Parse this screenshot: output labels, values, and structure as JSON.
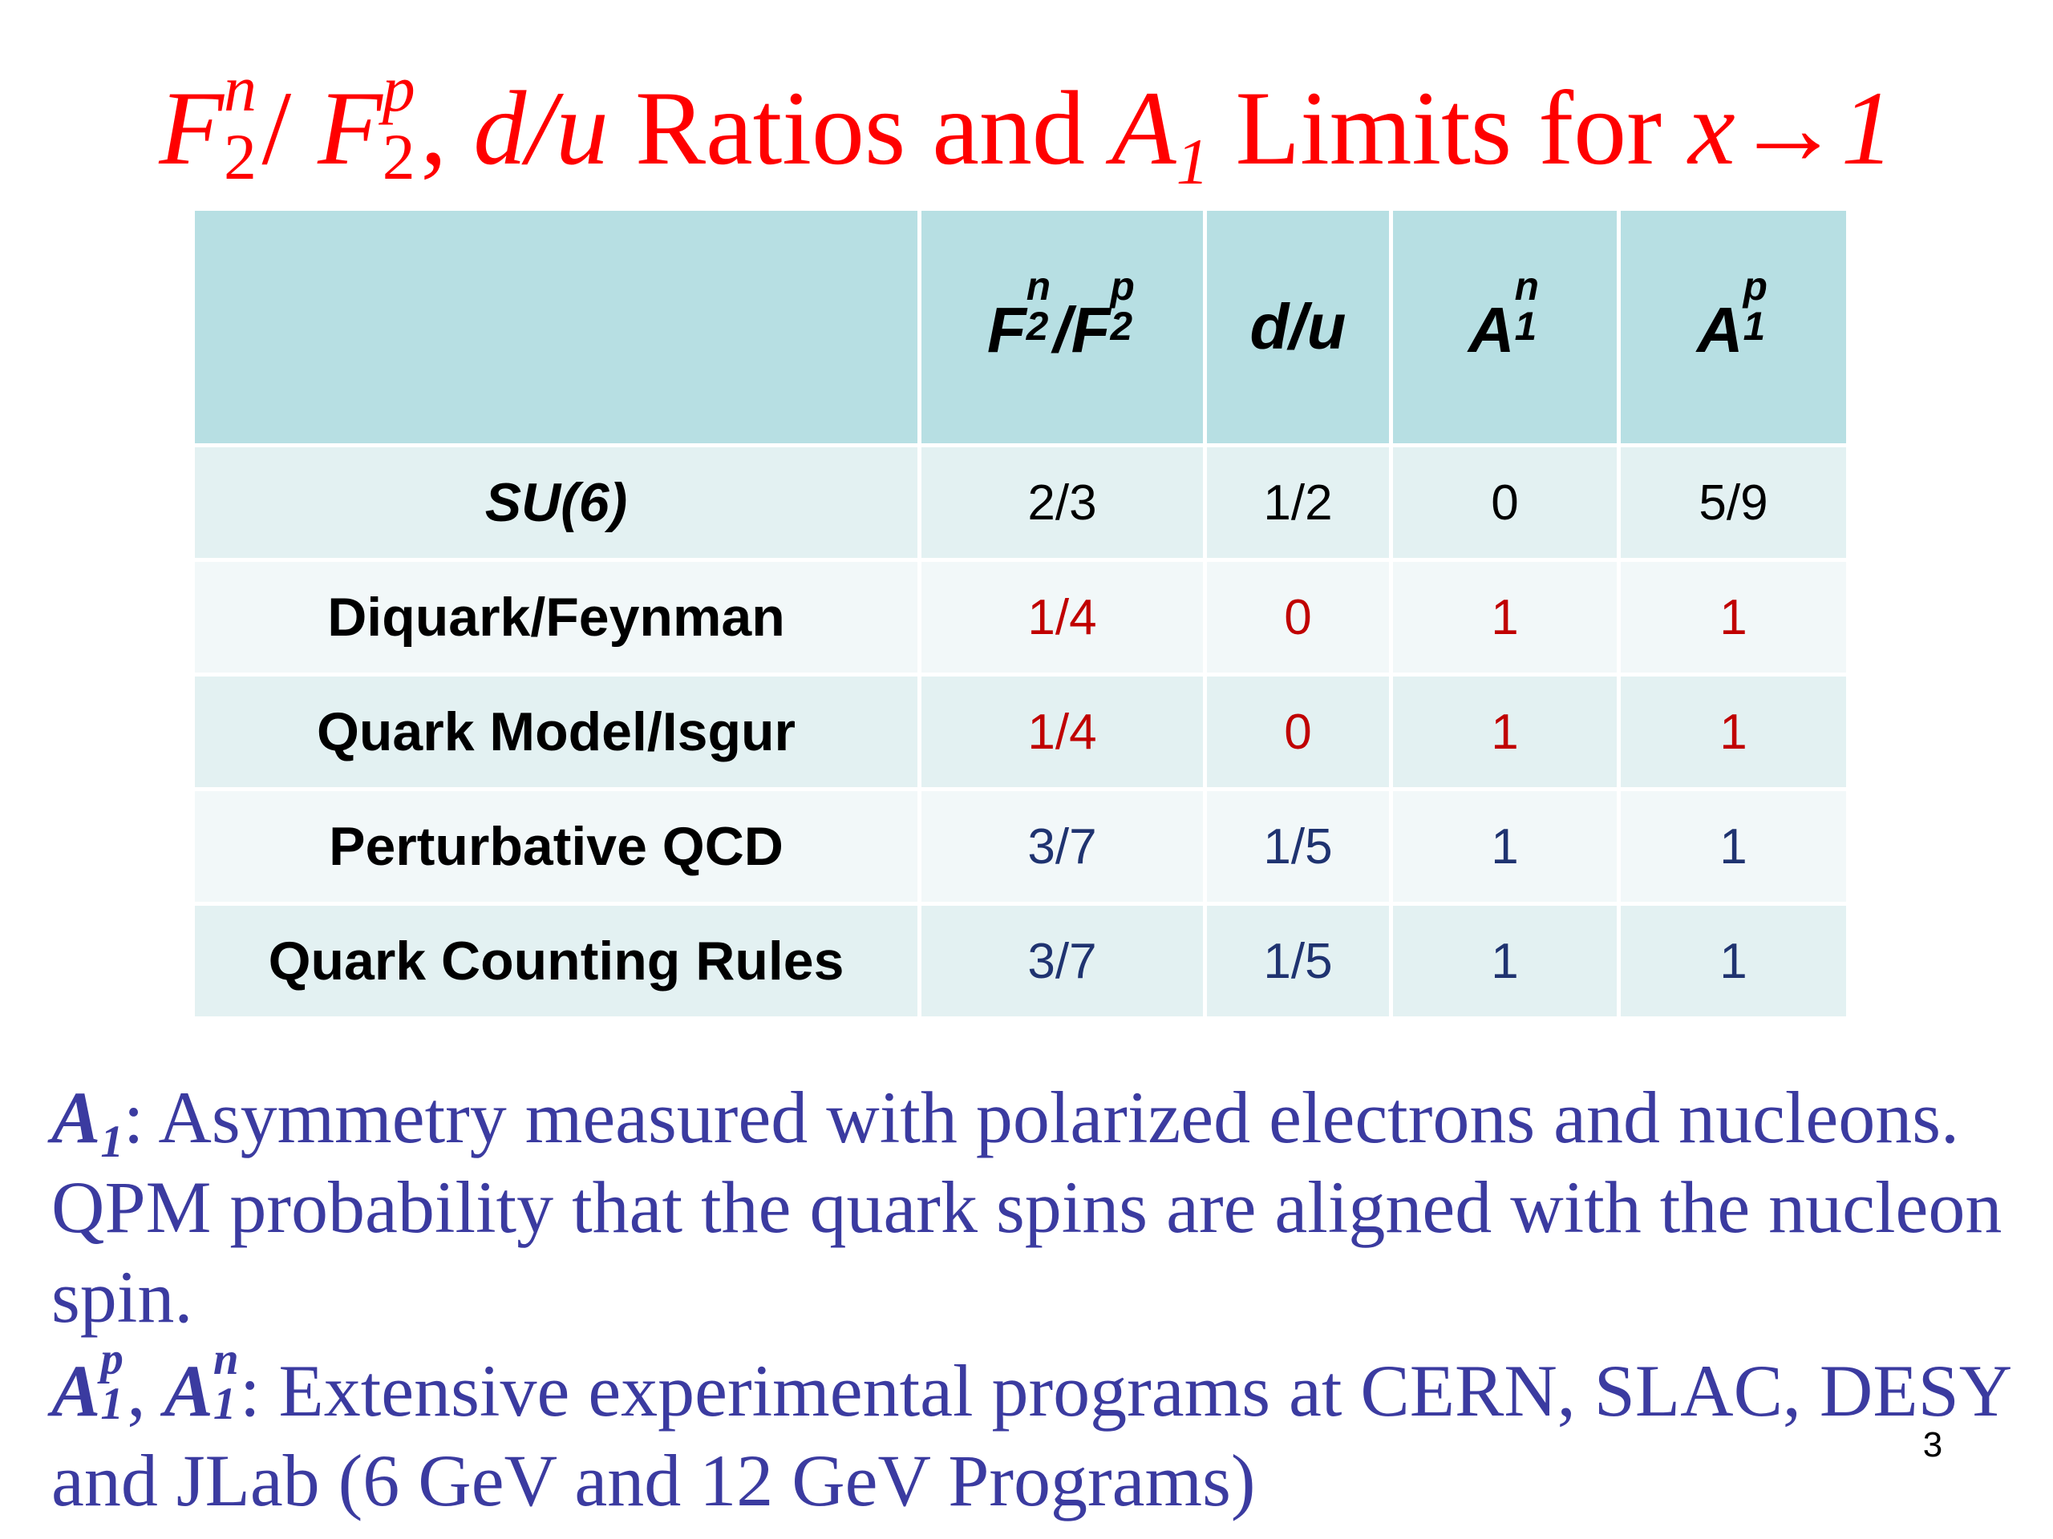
{
  "title": {
    "F": "F",
    "sub2": "2",
    "n": "n",
    "slash": "/ ",
    "p": "p",
    "du": "d/u",
    "ratios_and": " Ratios and ",
    "A": "A",
    "one": "1",
    "limits_for": " Limits for ",
    "x_to_1": "x→1",
    "comma": ", "
  },
  "table": {
    "headers": {
      "col0": "",
      "col1": {
        "F": "F",
        "n": "n",
        "sub2": "2",
        "slash": "/",
        "p": "p"
      },
      "col2": "d/u",
      "col3": {
        "A": "A",
        "n": "n",
        "sub1": "1"
      },
      "col4": {
        "A": "A",
        "p": "p",
        "sub1": "1"
      }
    },
    "rows": [
      {
        "label": "SU(6)",
        "values": [
          "2/3",
          "1/2",
          "0",
          "5/9"
        ]
      },
      {
        "label": "Diquark/Feynman",
        "values": [
          "1/4",
          "0",
          "1",
          "1"
        ]
      },
      {
        "label": "Quark Model/Isgur",
        "values": [
          "1/4",
          "0",
          "1",
          "1"
        ]
      },
      {
        "label": "Perturbative QCD",
        "values": [
          "3/7",
          "1/5",
          "1",
          "1"
        ]
      },
      {
        "label": "Quark Counting Rules",
        "values": [
          "3/7",
          "1/5",
          "1",
          "1"
        ]
      }
    ]
  },
  "colors": {
    "title": "#ff0000",
    "header_bg": "#b7dfe3",
    "row_bg_a": "#e3f1f2",
    "row_bg_b": "#f2f8f9",
    "red_values": "#c00000",
    "blue_values": "#1f3370",
    "notes": "#3b3ba0"
  },
  "notes": {
    "n1_term": "A",
    "n1_sub": "1",
    "n1_colon": ":",
    "n1_text": "   Asymmetry measured with polarized electrons and nucleons. QPM probability that the quark spins are aligned with the nucleon spin.",
    "n2_A": "A",
    "n2_p": "p",
    "n2_1": "1",
    "n2_comma": ", ",
    "n2_n": "n",
    "n2_colon": ":",
    "n2_text": "   Extensive experimental programs at CERN, SLAC, DESY and JLab (6 GeV and 12 GeV Programs)"
  },
  "page_number": "3"
}
